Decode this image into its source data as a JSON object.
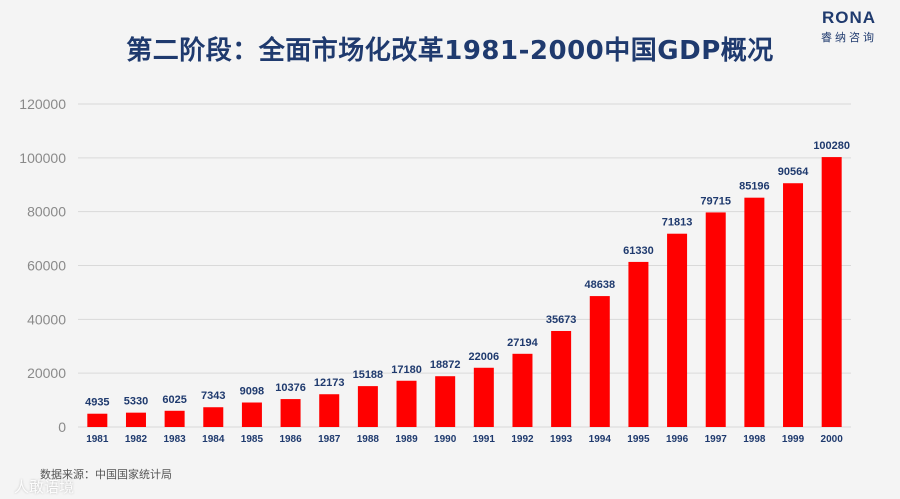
{
  "header": {
    "title": "第二阶段：全面市场化改革1981-2000中国GDP概况",
    "logo_main": "RONA",
    "logo_sub": "睿纳咨询"
  },
  "footer": {
    "source": "数据来源：中国国家统计局",
    "watermark": "人敢语境"
  },
  "colors": {
    "bar": "#ff0000",
    "title": "#1f3a6e",
    "grid": "#d9d9d9"
  },
  "chart_data": {
    "type": "bar",
    "categories": [
      "1981",
      "1982",
      "1983",
      "1984",
      "1985",
      "1986",
      "1987",
      "1988",
      "1989",
      "1990",
      "1991",
      "1992",
      "1993",
      "1994",
      "1995",
      "1996",
      "1997",
      "1998",
      "1999",
      "2000"
    ],
    "values": [
      4935,
      5330,
      6025,
      7343,
      9098,
      10376,
      12173,
      15188,
      17180,
      18872,
      22006,
      27194,
      35673,
      48638,
      61330,
      71813,
      79715,
      85196,
      90564,
      100280
    ],
    "ylim": [
      0,
      120000
    ],
    "yticks": [
      0,
      20000,
      40000,
      60000,
      80000,
      100000,
      120000
    ],
    "grid": true,
    "data_labels": true
  }
}
